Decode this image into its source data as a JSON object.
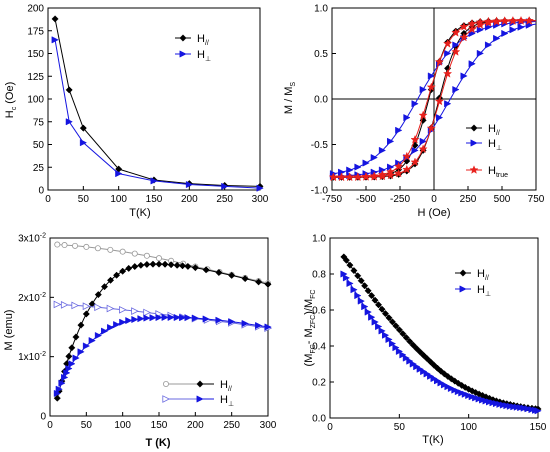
{
  "chart_data": [
    {
      "type": "line",
      "title": "",
      "xlabel": "T(K)",
      "ylabel": {
        "main": "H",
        "sub": "c",
        "unit": " (Oe)"
      },
      "xlim": [
        0,
        300
      ],
      "ylim": [
        0,
        200
      ],
      "xticks": [
        "0",
        "50",
        "100",
        "150",
        "200",
        "250",
        "300"
      ],
      "yticks": [
        "0",
        "25",
        "50",
        "75",
        "100",
        "125",
        "150",
        "175",
        "200"
      ],
      "grid": false,
      "legend_position": "top-right",
      "series": [
        {
          "name": "//",
          "color": "#000000",
          "marker": "diamond",
          "x": [
            10,
            30,
            50,
            100,
            150,
            200,
            250,
            300
          ],
          "y": [
            188,
            110,
            68,
            23,
            11,
            7,
            5,
            4
          ]
        },
        {
          "name": "⊥",
          "color": "#1515e0",
          "marker": "triangle-right",
          "x": [
            10,
            30,
            50,
            100,
            150,
            200,
            250,
            300
          ],
          "y": [
            165,
            75,
            52,
            18,
            10,
            6,
            4,
            2
          ]
        }
      ]
    },
    {
      "type": "line",
      "title": "",
      "xlabel": "H (Oe)",
      "ylabel": {
        "main": "M / M",
        "sub": "S",
        "unit": ""
      },
      "xlim": [
        -750,
        750
      ],
      "ylim": [
        -1.0,
        1.0
      ],
      "xticks": [
        "-750",
        "-500",
        "-250",
        "0",
        "250",
        "500",
        "750"
      ],
      "yticks": [
        "-1.0",
        "-0.5",
        "0.0",
        "0.5",
        "1.0"
      ],
      "grid": false,
      "legend_position": "bottom-right",
      "loops": [
        {
          "name": "//",
          "color": "#000000",
          "marker": "diamond",
          "Ms": 0.86,
          "Hc": 38,
          "w": 150
        },
        {
          "name": "⊥",
          "color": "#1515e0",
          "marker": "triangle-right",
          "Ms": 0.86,
          "Hc": 120,
          "w": 330
        },
        {
          "name": "true",
          "color": "#e8201c",
          "marker": "star",
          "Ms": 0.86,
          "Hc": 45,
          "w": 165
        }
      ]
    },
    {
      "type": "line",
      "title": "",
      "xlabel": "T (K)",
      "ylabel": "M (emu)",
      "xlim": [
        0,
        300
      ],
      "ylim": [
        0,
        0.03
      ],
      "xticks": [
        "0",
        "50",
        "100",
        "150",
        "200",
        "250",
        "300"
      ],
      "yticks": [
        {
          "mant": "0",
          "exp": ""
        },
        {
          "mant": "1x10",
          "exp": "-2"
        },
        {
          "mant": "2x10",
          "exp": "-2"
        },
        {
          "mant": "3x10",
          "exp": "-2"
        }
      ],
      "grid": false,
      "legend_position": "bottom-right",
      "series": [
        {
          "name": "// FC",
          "color": "#999999",
          "marker": "circle-open",
          "x": [
            10,
            50,
            100,
            150,
            200,
            250,
            300
          ],
          "y": [
            0.0289,
            0.0285,
            0.0277,
            0.0266,
            0.0252,
            0.0238,
            0.0224
          ]
        },
        {
          "name": "// ZFC",
          "color": "#000000",
          "marker": "diamond",
          "x": [
            10,
            20,
            30,
            50,
            75,
            100,
            125,
            150,
            175,
            200,
            250,
            300
          ],
          "y": [
            0.003,
            0.0075,
            0.0115,
            0.0172,
            0.0218,
            0.0244,
            0.0254,
            0.0256,
            0.0254,
            0.025,
            0.0237,
            0.0222
          ]
        },
        {
          "name": "⊥ FC",
          "color": "#6a6ae0",
          "marker": "triangle-open",
          "x": [
            10,
            50,
            100,
            150,
            200,
            250,
            300
          ],
          "y": [
            0.0188,
            0.0185,
            0.0179,
            0.0172,
            0.0164,
            0.0157,
            0.0148
          ]
        },
        {
          "name": "⊥ ZFC",
          "color": "#1515e0",
          "marker": "triangle-right",
          "x": [
            10,
            20,
            30,
            50,
            75,
            100,
            125,
            150,
            175,
            200,
            250,
            300
          ],
          "y": [
            0.0038,
            0.0065,
            0.0088,
            0.0118,
            0.0143,
            0.0158,
            0.0164,
            0.0166,
            0.0166,
            0.0165,
            0.0159,
            0.015
          ]
        }
      ]
    },
    {
      "type": "line",
      "title": "",
      "xlabel": "T(K)",
      "ylabel": "(M_FC - M_ZFC)/M_FC",
      "xlim": [
        0,
        150
      ],
      "ylim": [
        0,
        1.0
      ],
      "xticks": [
        "0",
        "50",
        "100",
        "150"
      ],
      "yticks": [
        "0.0",
        "0.2",
        "0.4",
        "0.6",
        "0.8",
        "1.0"
      ],
      "grid": false,
      "legend_position": "top-right",
      "series": [
        {
          "name": "//",
          "color": "#000000",
          "marker": "diamond",
          "x": [
            10,
            20,
            30,
            40,
            50,
            60,
            70,
            80,
            90,
            100,
            110,
            120,
            130,
            140,
            150
          ],
          "y": [
            0.895,
            0.79,
            0.68,
            0.58,
            0.49,
            0.405,
            0.33,
            0.26,
            0.205,
            0.16,
            0.125,
            0.095,
            0.075,
            0.06,
            0.05
          ]
        },
        {
          "name": "⊥",
          "color": "#1515e0",
          "marker": "triangle-right",
          "x": [
            10,
            20,
            30,
            40,
            50,
            60,
            70,
            80,
            90,
            100,
            110,
            120,
            130,
            140,
            150
          ],
          "y": [
            0.8,
            0.68,
            0.56,
            0.46,
            0.37,
            0.3,
            0.245,
            0.195,
            0.155,
            0.125,
            0.1,
            0.08,
            0.065,
            0.055,
            0.04
          ]
        }
      ]
    }
  ],
  "labels": {
    "hc_ylabel_main": "H",
    "hc_ylabel_sub": "c",
    "hc_ylabel_unit": " (Oe)",
    "mh_ylabel_main": "M / M",
    "mh_ylabel_sub": "S",
    "mt_ylabel": "M (emu)",
    "diff_ylabel_1": "(M",
    "diff_ylabel_2": "FC",
    "diff_ylabel_3": "- M",
    "diff_ylabel_4": "ZFC",
    "diff_ylabel_5": ")/M",
    "diff_ylabel_6": "FC",
    "leg_H": "H",
    "leg_par": "//",
    "leg_perp": "⊥",
    "leg_true": "true"
  }
}
